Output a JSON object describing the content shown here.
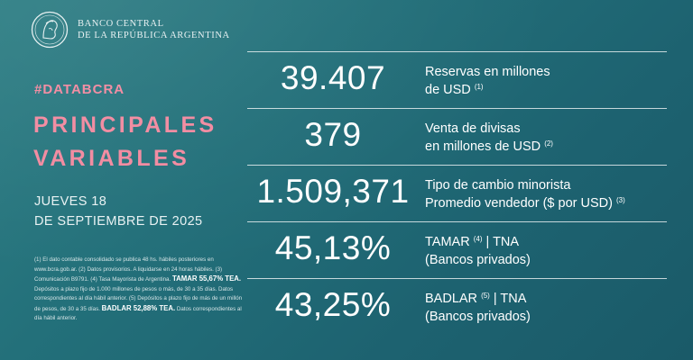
{
  "header": {
    "bank_line1": "BANCO CENTRAL",
    "bank_line2": "DE LA REPÚBLICA ARGENTINA",
    "logo_icon": "bcra-seal-icon"
  },
  "left": {
    "hashtag": "#DATABCRA",
    "title_line1": "PRINCIPALES",
    "title_line2": "VARIABLES",
    "date_line1": "JUEVES 18",
    "date_line2": "DE SEPTIEMBRE DE 2025"
  },
  "notes": {
    "n1": "(1) El dato contable consolidado se publica 48 hs. hábiles posteriores en www.bcra.gob.ar. (2) Datos provisorios. A liquidarse en 24 horas hábiles. (3) Comunicación B9791. (4) Tasa Mayorista de Argentina.",
    "tamar_bold": "TAMAR 55,67% TEA.",
    "n2": "Depósitos a plazo fijo de 1.000 millones de pesos o más, de 30 a 35 días. Datos correspondientes al día hábil anterior. (5) Depósitos a plazo fijo de más de un millón de pesos, de 30 a 35 días.",
    "badlar_bold": "BADLAR 52,88% TEA.",
    "n3": "Datos correspondientes al día hábil anterior."
  },
  "rows": [
    {
      "value": "39.407",
      "label1": "Reservas en millones",
      "label2": "de USD",
      "note2": "(1)",
      "note1": ""
    },
    {
      "value": "379",
      "label1": "Venta de divisas",
      "label2": "en millones de USD",
      "note2": "(2)",
      "note1": ""
    },
    {
      "value": "1.509,371",
      "label1": "Tipo de cambio minorista",
      "label2": "Promedio vendedor ($ por USD)",
      "note2": "(3)",
      "note1": ""
    },
    {
      "value": "45,13%",
      "label1a": "TAMAR",
      "note1": "(4)",
      "label1b": "| TNA",
      "label2": "(Bancos privados)",
      "note2": ""
    },
    {
      "value": "43,25%",
      "label1a": "BADLAR",
      "note1": "(5)",
      "label1b": "| TNA",
      "label2": "(Bancos privados)",
      "note2": ""
    }
  ],
  "colors": {
    "accent_pink": "#f28aa0",
    "background_teal": "#23707a"
  }
}
